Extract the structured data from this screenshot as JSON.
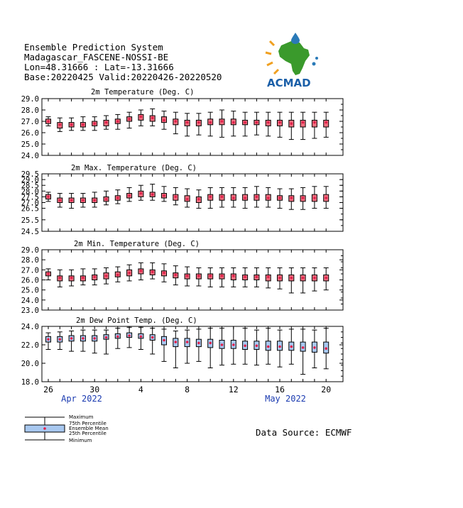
{
  "header": {
    "line1": "Ensemble Prediction System",
    "line2": "Madagascar_FASCENE-NOSSI-BE",
    "line3": "Lon=48.31666 : Lat=-13.31666",
    "line4": "Base:20220425 Valid:20220426-20220520"
  },
  "logo": {
    "text": "ACMAD",
    "colors": {
      "africa": "#3a9a2c",
      "drop": "#2a7ab8",
      "sun": "#f0a020",
      "text": "#1a5fa8"
    }
  },
  "source": "Data Source: ECMWF",
  "colors": {
    "box_fill": "#a8c8f0",
    "box_fill_red": "#f07080",
    "mean_dot": "#e0204a",
    "axis": "#000000",
    "date_label": "#1a3ab0"
  },
  "x_axis": {
    "day_labels": [
      "26",
      "30",
      "4",
      "8",
      "12",
      "16",
      "20"
    ],
    "month_labels": [
      "Apr 2022",
      "May 2022"
    ]
  },
  "legend": {
    "items": [
      "Maximum",
      "75th Percentile",
      "Ensemble Mean",
      "25th Percentile",
      "Minimum"
    ]
  },
  "chart_data": [
    {
      "type": "boxplot",
      "title": "2m Temperature (Deg. C)",
      "yticks": [
        "29.0",
        "28.0",
        "27.0",
        "26.0",
        "25.0",
        "24.0"
      ],
      "ylim": [
        24.0,
        29.0
      ],
      "dates": [
        "2022-04-26",
        "2022-04-27",
        "2022-04-28",
        "2022-04-29",
        "2022-04-30",
        "2022-05-01",
        "2022-05-02",
        "2022-05-03",
        "2022-05-04",
        "2022-05-05",
        "2022-05-06",
        "2022-05-07",
        "2022-05-08",
        "2022-05-09",
        "2022-05-10",
        "2022-05-11",
        "2022-05-12",
        "2022-05-13",
        "2022-05-14",
        "2022-05-15",
        "2022-05-16",
        "2022-05-17",
        "2022-05-18",
        "2022-05-19",
        "2022-05-20"
      ],
      "min": [
        26.6,
        26.1,
        26.2,
        26.2,
        26.2,
        26.3,
        26.3,
        26.4,
        26.6,
        26.6,
        26.3,
        25.9,
        25.7,
        25.8,
        25.7,
        25.6,
        25.7,
        25.7,
        25.8,
        25.7,
        25.6,
        25.4,
        25.4,
        25.5,
        25.6
      ],
      "p25": [
        26.8,
        26.4,
        26.5,
        26.5,
        26.6,
        26.6,
        26.8,
        27.0,
        27.1,
        27.0,
        26.9,
        26.7,
        26.6,
        26.6,
        26.7,
        26.7,
        26.7,
        26.7,
        26.7,
        26.6,
        26.6,
        26.5,
        26.5,
        26.5,
        26.5
      ],
      "mean": [
        27.0,
        26.7,
        26.7,
        26.7,
        26.8,
        26.9,
        27.0,
        27.2,
        27.4,
        27.3,
        27.1,
        27.0,
        26.9,
        26.9,
        26.9,
        27.0,
        26.9,
        26.9,
        26.9,
        26.9,
        26.9,
        26.8,
        26.9,
        26.9,
        26.9
      ],
      "p75": [
        27.2,
        26.9,
        26.9,
        26.9,
        27.0,
        27.1,
        27.2,
        27.4,
        27.6,
        27.5,
        27.4,
        27.2,
        27.1,
        27.1,
        27.2,
        27.2,
        27.2,
        27.1,
        27.1,
        27.1,
        27.1,
        27.1,
        27.1,
        27.1,
        27.1
      ],
      "max": [
        27.4,
        27.3,
        27.3,
        27.4,
        27.4,
        27.5,
        27.6,
        27.8,
        28.0,
        28.1,
        27.9,
        27.8,
        27.7,
        27.7,
        27.8,
        28.0,
        27.9,
        27.8,
        27.8,
        27.8,
        27.8,
        27.8,
        27.8,
        27.8,
        27.8
      ]
    },
    {
      "type": "boxplot",
      "title": "2m Max. Temperature (Deg. C)",
      "yticks": [
        "29.5",
        "29.0",
        "28.5",
        "28.0",
        "27.5",
        "27.0",
        "26.5",
        "25.5",
        "24.5"
      ],
      "ylim": [
        24.5,
        29.5
      ],
      "dates": [
        "2022-04-26",
        "2022-04-27",
        "2022-04-28",
        "2022-04-29",
        "2022-04-30",
        "2022-05-01",
        "2022-05-02",
        "2022-05-03",
        "2022-05-04",
        "2022-05-05",
        "2022-05-06",
        "2022-05-07",
        "2022-05-08",
        "2022-05-09",
        "2022-05-10",
        "2022-05-11",
        "2022-05-12",
        "2022-05-13",
        "2022-05-14",
        "2022-05-15",
        "2022-05-16",
        "2022-05-17",
        "2022-05-18",
        "2022-05-19",
        "2022-05-20"
      ],
      "min": [
        27.1,
        26.6,
        26.5,
        26.6,
        26.6,
        26.8,
        26.9,
        27.1,
        27.2,
        27.2,
        27.1,
        26.8,
        26.6,
        26.5,
        26.5,
        26.6,
        26.6,
        26.5,
        26.6,
        26.6,
        26.5,
        26.4,
        26.4,
        26.5,
        26.5
      ],
      "p25": [
        27.3,
        27.0,
        27.0,
        27.0,
        27.0,
        27.1,
        27.2,
        27.4,
        27.5,
        27.5,
        27.4,
        27.2,
        27.1,
        27.0,
        27.2,
        27.2,
        27.2,
        27.2,
        27.2,
        27.2,
        27.2,
        27.1,
        27.1,
        27.1,
        27.1
      ],
      "mean": [
        27.5,
        27.2,
        27.2,
        27.2,
        27.2,
        27.3,
        27.4,
        27.6,
        27.8,
        27.7,
        27.6,
        27.5,
        27.3,
        27.3,
        27.5,
        27.5,
        27.4,
        27.4,
        27.5,
        27.4,
        27.4,
        27.4,
        27.4,
        27.4,
        27.4
      ],
      "p75": [
        27.7,
        27.4,
        27.4,
        27.4,
        27.4,
        27.5,
        27.6,
        27.8,
        28.0,
        27.9,
        27.8,
        27.7,
        27.6,
        27.5,
        27.7,
        27.7,
        27.7,
        27.7,
        27.7,
        27.7,
        27.6,
        27.6,
        27.6,
        27.7,
        27.7
      ],
      "max": [
        27.9,
        27.8,
        27.8,
        27.8,
        27.9,
        28.0,
        28.1,
        28.3,
        28.5,
        28.6,
        28.4,
        28.3,
        28.2,
        28.1,
        28.3,
        28.3,
        28.3,
        28.3,
        28.4,
        28.3,
        28.2,
        28.2,
        28.3,
        28.4,
        28.4
      ]
    },
    {
      "type": "boxplot",
      "title": "2m Min. Temperature (Deg. C)",
      "yticks": [
        "29.0",
        "28.0",
        "27.0",
        "26.0",
        "25.0",
        "24.0",
        "23.0"
      ],
      "ylim": [
        23.0,
        29.0
      ],
      "dates": [
        "2022-04-26",
        "2022-04-27",
        "2022-04-28",
        "2022-04-29",
        "2022-04-30",
        "2022-05-01",
        "2022-05-02",
        "2022-05-03",
        "2022-05-04",
        "2022-05-05",
        "2022-05-06",
        "2022-05-07",
        "2022-05-08",
        "2022-05-09",
        "2022-05-10",
        "2022-05-11",
        "2022-05-12",
        "2022-05-13",
        "2022-05-14",
        "2022-05-15",
        "2022-05-16",
        "2022-05-17",
        "2022-05-18",
        "2022-05-19",
        "2022-05-20"
      ],
      "min": [
        26.0,
        25.3,
        25.4,
        25.5,
        25.5,
        25.6,
        25.8,
        25.9,
        26.0,
        26.1,
        25.8,
        25.5,
        25.4,
        25.4,
        25.3,
        25.3,
        25.3,
        25.3,
        25.3,
        25.2,
        25.1,
        24.7,
        24.7,
        24.9,
        25.0
      ],
      "p25": [
        26.4,
        25.9,
        25.9,
        25.9,
        26.0,
        26.1,
        26.3,
        26.4,
        26.6,
        26.5,
        26.4,
        26.2,
        26.1,
        26.1,
        26.1,
        26.1,
        26.0,
        26.0,
        26.0,
        25.9,
        25.9,
        25.9,
        25.9,
        25.9,
        25.9
      ],
      "mean": [
        26.6,
        26.2,
        26.2,
        26.2,
        26.3,
        26.4,
        26.5,
        26.7,
        26.9,
        26.8,
        26.7,
        26.5,
        26.4,
        26.4,
        26.4,
        26.4,
        26.4,
        26.3,
        26.3,
        26.3,
        26.2,
        26.2,
        26.2,
        26.2,
        26.2
      ],
      "p75": [
        26.8,
        26.4,
        26.4,
        26.4,
        26.5,
        26.7,
        26.8,
        27.0,
        27.1,
        27.0,
        26.9,
        26.7,
        26.6,
        26.6,
        26.6,
        26.6,
        26.6,
        26.5,
        26.5,
        26.5,
        26.5,
        26.5,
        26.5,
        26.5,
        26.5
      ],
      "max": [
        27.1,
        27.0,
        27.0,
        27.1,
        27.1,
        27.2,
        27.3,
        27.5,
        27.7,
        27.7,
        27.6,
        27.4,
        27.3,
        27.2,
        27.2,
        27.2,
        27.2,
        27.2,
        27.2,
        27.2,
        27.2,
        27.2,
        27.2,
        27.2,
        27.2
      ]
    },
    {
      "type": "boxplot",
      "title": "2m Dew Point Temp. (Deg. C)",
      "yticks": [
        "24.0",
        "22.0",
        "20.0",
        "18.0"
      ],
      "ylim": [
        18.0,
        24.0
      ],
      "dates": [
        "2022-04-26",
        "2022-04-27",
        "2022-04-28",
        "2022-04-29",
        "2022-04-30",
        "2022-05-01",
        "2022-05-02",
        "2022-05-03",
        "2022-05-04",
        "2022-05-05",
        "2022-05-06",
        "2022-05-07",
        "2022-05-08",
        "2022-05-09",
        "2022-05-10",
        "2022-05-11",
        "2022-05-12",
        "2022-05-13",
        "2022-05-14",
        "2022-05-15",
        "2022-05-16",
        "2022-05-17",
        "2022-05-18",
        "2022-05-19",
        "2022-05-20"
      ],
      "min": [
        21.5,
        21.5,
        21.3,
        21.3,
        21.1,
        21.0,
        21.6,
        21.7,
        21.5,
        21.0,
        20.2,
        19.5,
        20.0,
        20.2,
        19.5,
        19.8,
        19.9,
        19.9,
        19.8,
        19.9,
        19.6,
        19.9,
        18.8,
        19.5,
        19.4
      ],
      "p25": [
        22.3,
        22.3,
        22.4,
        22.4,
        22.4,
        22.6,
        22.7,
        22.8,
        22.7,
        22.5,
        22.0,
        21.8,
        21.8,
        21.8,
        21.7,
        21.6,
        21.6,
        21.5,
        21.5,
        21.4,
        21.4,
        21.4,
        21.3,
        21.2,
        21.1
      ],
      "mean": [
        22.6,
        22.6,
        22.7,
        22.7,
        22.7,
        22.8,
        22.9,
        23.0,
        22.9,
        22.8,
        22.5,
        22.3,
        22.3,
        22.2,
        22.2,
        22.0,
        22.0,
        21.9,
        21.9,
        21.8,
        21.8,
        21.8,
        21.7,
        21.7,
        21.6
      ],
      "p75": [
        22.9,
        22.9,
        23.0,
        23.0,
        23.0,
        23.1,
        23.2,
        23.3,
        23.2,
        23.1,
        22.9,
        22.7,
        22.7,
        22.6,
        22.6,
        22.5,
        22.5,
        22.4,
        22.4,
        22.4,
        22.4,
        22.3,
        22.3,
        22.3,
        22.3
      ],
      "max": [
        23.3,
        23.4,
        23.5,
        23.6,
        23.6,
        23.6,
        23.8,
        23.9,
        23.9,
        23.8,
        23.7,
        23.5,
        23.6,
        23.7,
        23.8,
        23.8,
        24.0,
        23.8,
        23.6,
        23.8,
        23.6,
        23.7,
        23.7,
        23.6,
        23.8
      ]
    }
  ]
}
